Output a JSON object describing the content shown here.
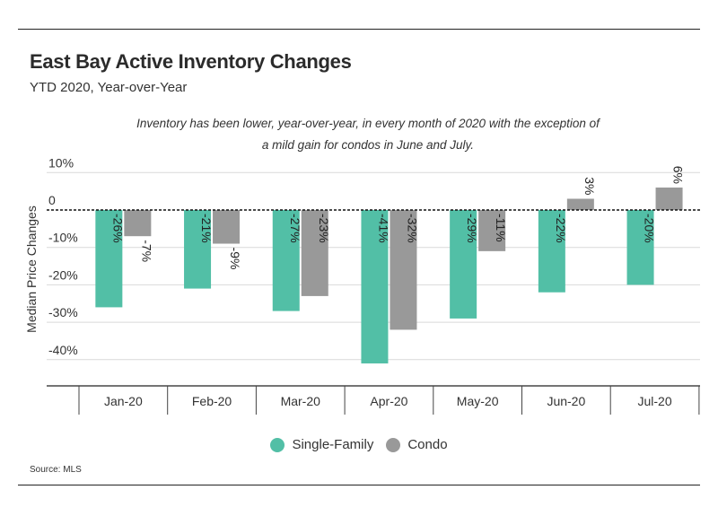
{
  "header": {
    "title": "East Bay Active Inventory Changes",
    "subtitle": "YTD 2020, Year-over-Year",
    "annotation": "Inventory has been lower, year-over-year, in every month of 2020 with the exception of a mild gain for condos in June and July."
  },
  "source": "Source:  MLS",
  "colors": {
    "single_family": "#52bfa6",
    "condo": "#999999"
  },
  "chart_data": {
    "type": "bar",
    "categories": [
      "Jan-20",
      "Feb-20",
      "Mar-20",
      "Apr-20",
      "May-20",
      "Jun-20",
      "Jul-20"
    ],
    "series": [
      {
        "name": "Single-Family",
        "values": [
          -26,
          -21,
          -27,
          -41,
          -29,
          -22,
          -20
        ],
        "labels": [
          "-26%",
          "-21%",
          "-27%",
          "-41%",
          "-29%",
          "-22%",
          "-20%"
        ]
      },
      {
        "name": "Condo",
        "values": [
          -7,
          -9,
          -23,
          -32,
          -11,
          3,
          6
        ],
        "labels": [
          "-7%",
          "-9%",
          "-23%",
          "-32%",
          "-11%",
          "3%",
          "6%"
        ]
      }
    ],
    "ylabel": "Median Price Changes",
    "ylim": [
      -45,
      10
    ],
    "yticks": [
      10,
      0,
      -10,
      -20,
      -30,
      -40
    ],
    "ytick_labels": [
      "10%",
      "0",
      "-10%",
      "-20%",
      "-30%",
      "-40%"
    ],
    "grid": true,
    "legend": "bottom-center"
  }
}
